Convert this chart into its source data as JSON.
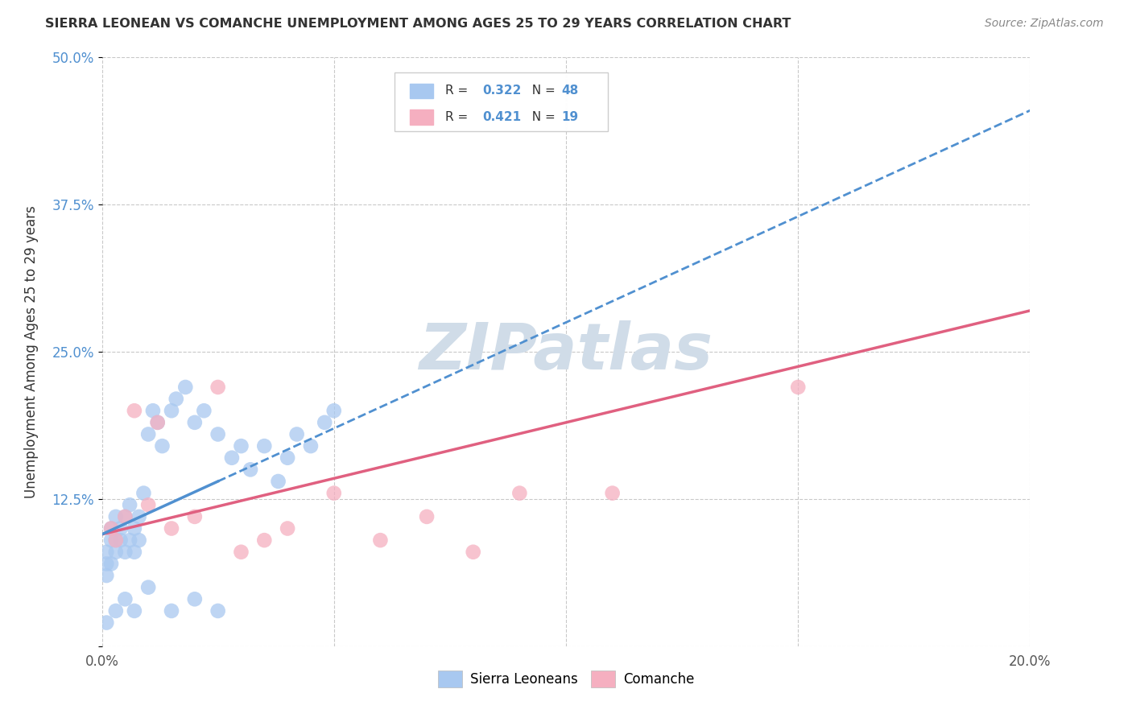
{
  "title": "SIERRA LEONEAN VS COMANCHE UNEMPLOYMENT AMONG AGES 25 TO 29 YEARS CORRELATION CHART",
  "source": "Source: ZipAtlas.com",
  "ylabel": "Unemployment Among Ages 25 to 29 years",
  "xlim": [
    0.0,
    0.2
  ],
  "ylim": [
    0.0,
    0.5
  ],
  "xtick_positions": [
    0.0,
    0.05,
    0.1,
    0.15,
    0.2
  ],
  "xtick_labels": [
    "0.0%",
    "",
    "",
    "",
    "20.0%"
  ],
  "ytick_positions": [
    0.0,
    0.125,
    0.25,
    0.375,
    0.5
  ],
  "ytick_labels": [
    "",
    "12.5%",
    "25.0%",
    "37.5%",
    "50.0%"
  ],
  "sierra_R": 0.322,
  "sierra_N": 48,
  "comanche_R": 0.421,
  "comanche_N": 19,
  "sierra_color": "#a8c8f0",
  "comanche_color": "#f5afc0",
  "sierra_line_color": "#5090d0",
  "comanche_line_color": "#e06080",
  "sierra_line_solid": [
    0.0,
    0.025
  ],
  "sierra_line_dashed": [
    0.025,
    0.2
  ],
  "sierra_trend_y0": 0.095,
  "sierra_trend_y1": 0.455,
  "comanche_trend_y0": 0.095,
  "comanche_trend_y1": 0.285,
  "watermark_text": "ZIPatlas",
  "watermark_color": "#d0dce8",
  "background_color": "#ffffff",
  "sierra_x": [
    0.001,
    0.001,
    0.001,
    0.002,
    0.002,
    0.002,
    0.003,
    0.003,
    0.003,
    0.004,
    0.004,
    0.005,
    0.005,
    0.006,
    0.006,
    0.007,
    0.007,
    0.008,
    0.008,
    0.009,
    0.01,
    0.011,
    0.012,
    0.013,
    0.015,
    0.016,
    0.018,
    0.02,
    0.022,
    0.025,
    0.028,
    0.03,
    0.032,
    0.035,
    0.038,
    0.04,
    0.042,
    0.045,
    0.048,
    0.05,
    0.001,
    0.003,
    0.005,
    0.007,
    0.01,
    0.015,
    0.02,
    0.025
  ],
  "sierra_y": [
    0.06,
    0.07,
    0.08,
    0.07,
    0.09,
    0.1,
    0.08,
    0.09,
    0.11,
    0.09,
    0.1,
    0.08,
    0.11,
    0.09,
    0.12,
    0.1,
    0.08,
    0.11,
    0.09,
    0.13,
    0.18,
    0.2,
    0.19,
    0.17,
    0.2,
    0.21,
    0.22,
    0.19,
    0.2,
    0.18,
    0.16,
    0.17,
    0.15,
    0.17,
    0.14,
    0.16,
    0.18,
    0.17,
    0.19,
    0.2,
    0.02,
    0.03,
    0.04,
    0.03,
    0.05,
    0.03,
    0.04,
    0.03
  ],
  "comanche_x": [
    0.002,
    0.003,
    0.005,
    0.007,
    0.01,
    0.012,
    0.015,
    0.02,
    0.025,
    0.03,
    0.035,
    0.04,
    0.05,
    0.06,
    0.07,
    0.08,
    0.09,
    0.11,
    0.15
  ],
  "comanche_y": [
    0.1,
    0.09,
    0.11,
    0.2,
    0.12,
    0.19,
    0.1,
    0.11,
    0.22,
    0.08,
    0.09,
    0.1,
    0.13,
    0.09,
    0.11,
    0.08,
    0.13,
    0.13,
    0.22
  ]
}
